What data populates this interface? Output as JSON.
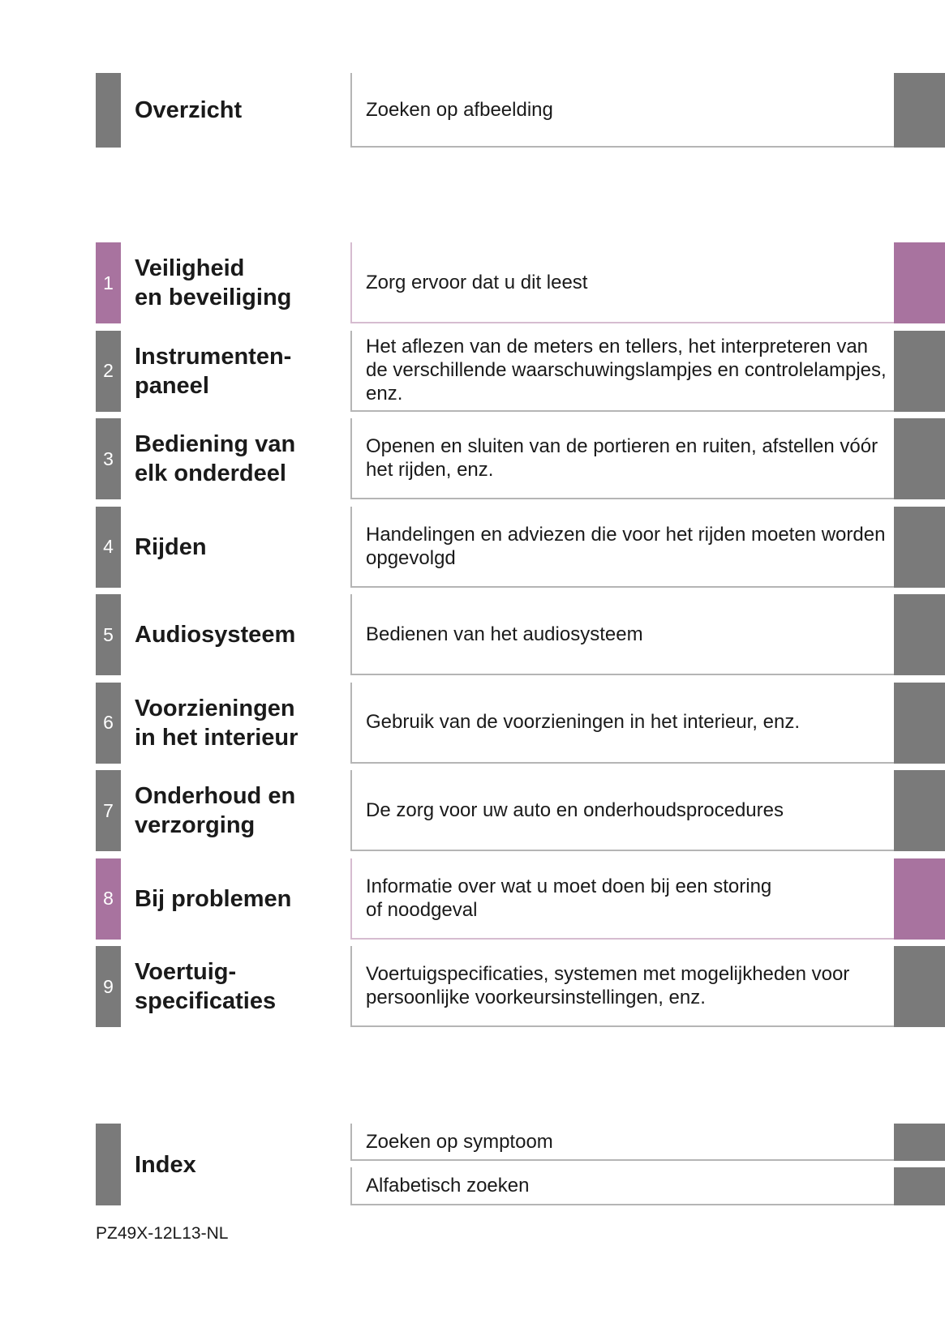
{
  "colors": {
    "gray": "#7a7a7a",
    "accent_purple": "#a8739f"
  },
  "overview": {
    "title": "Overzicht",
    "description": "Zoeken op afbeelding"
  },
  "chapters": [
    {
      "number": "1",
      "title": "Veiligheid\nen beveiliging",
      "description": "Zorg ervoor dat u dit leest",
      "highlight": true
    },
    {
      "number": "2",
      "title": "Instrumenten-\npaneel",
      "description": "Het aflezen van de meters en tellers, het interpreteren van de verschillende waarschuwingslampjes en controlelampjes, enz.",
      "highlight": false
    },
    {
      "number": "3",
      "title": "Bediening van\nelk onderdeel",
      "description": "Openen en sluiten van de portieren en ruiten, afstellen vóór het rijden, enz.",
      "highlight": false
    },
    {
      "number": "4",
      "title": "Rijden",
      "description": "Handelingen en adviezen die voor het rijden moeten worden opgevolgd",
      "highlight": false
    },
    {
      "number": "5",
      "title": "Audiosysteem",
      "description": "Bedienen van het audiosysteem",
      "highlight": false
    },
    {
      "number": "6",
      "title": "Voorzieningen\nin het interieur",
      "description": "Gebruik van de voorzieningen in het interieur, enz.",
      "highlight": false
    },
    {
      "number": "7",
      "title": "Onderhoud en\nverzorging",
      "description": "De zorg voor uw auto en onderhoudsprocedures",
      "highlight": false
    },
    {
      "number": "8",
      "title": "Bij problemen",
      "description": "Informatie over wat u moet doen bij een storing\nof noodgeval",
      "highlight": true
    },
    {
      "number": "9",
      "title": "Voertuig-\nspecificaties",
      "description": "Voertuigspecificaties, systemen met mogelijkheden voor persoonlijke voorkeursinstellingen, enz.",
      "highlight": false
    }
  ],
  "index": {
    "title": "Index",
    "items": [
      "Zoeken op symptoom",
      "Alfabetisch zoeken"
    ]
  },
  "footer": {
    "code": "PZ49X-12L13-NL"
  }
}
